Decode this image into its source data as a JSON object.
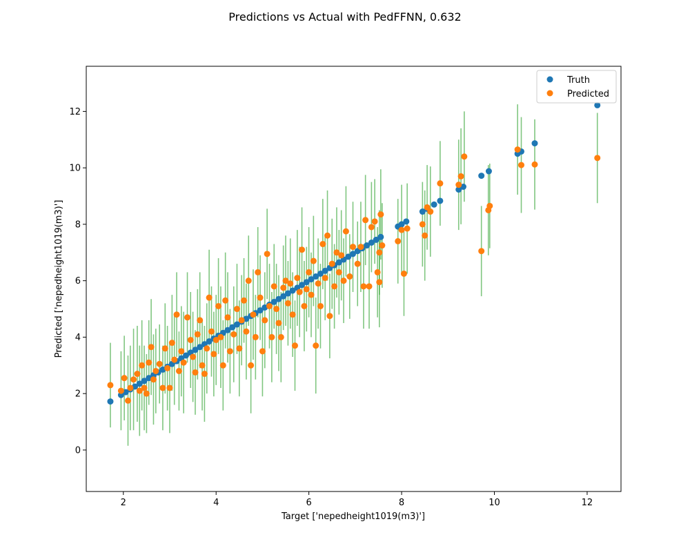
{
  "chart_data": {
    "type": "scatter",
    "title": "Predictions vs Actual with PedFFNN, 0.632",
    "xlabel": "Target ['nepedheight1019(m3)']",
    "ylabel": "Predicted ['nepedheight1019(m3)']",
    "xlim": [
      1.2,
      12.73
    ],
    "ylim": [
      -1.47,
      13.6
    ],
    "xticks": [
      2,
      4,
      6,
      8,
      10,
      12
    ],
    "yticks": [
      0,
      2,
      4,
      6,
      8,
      10,
      12
    ],
    "grid": false,
    "legend_position": "upper right",
    "colors": {
      "truth": "#1f77b4",
      "predicted": "#ff7f0e",
      "errorbar": "#2ca02c"
    },
    "series": [
      {
        "name": "Truth",
        "role": "truth",
        "points": [
          [
            1.72,
            1.72
          ],
          [
            1.95,
            1.95
          ],
          [
            2.05,
            2.05
          ],
          [
            2.15,
            2.15
          ],
          [
            2.25,
            2.25
          ],
          [
            2.35,
            2.35
          ],
          [
            2.45,
            2.45
          ],
          [
            2.55,
            2.55
          ],
          [
            2.65,
            2.65
          ],
          [
            2.75,
            2.75
          ],
          [
            2.85,
            2.85
          ],
          [
            2.95,
            2.95
          ],
          [
            3.05,
            3.05
          ],
          [
            3.15,
            3.15
          ],
          [
            3.25,
            3.25
          ],
          [
            3.35,
            3.35
          ],
          [
            3.45,
            3.45
          ],
          [
            3.55,
            3.55
          ],
          [
            3.65,
            3.65
          ],
          [
            3.75,
            3.75
          ],
          [
            3.85,
            3.85
          ],
          [
            3.95,
            3.95
          ],
          [
            4.05,
            4.05
          ],
          [
            4.15,
            4.15
          ],
          [
            4.25,
            4.25
          ],
          [
            4.35,
            4.35
          ],
          [
            4.45,
            4.45
          ],
          [
            4.55,
            4.55
          ],
          [
            4.65,
            4.65
          ],
          [
            4.75,
            4.75
          ],
          [
            4.85,
            4.85
          ],
          [
            4.95,
            4.95
          ],
          [
            5.05,
            5.05
          ],
          [
            5.15,
            5.15
          ],
          [
            5.25,
            5.25
          ],
          [
            5.35,
            5.35
          ],
          [
            5.45,
            5.45
          ],
          [
            5.55,
            5.55
          ],
          [
            5.65,
            5.65
          ],
          [
            5.75,
            5.75
          ],
          [
            5.85,
            5.85
          ],
          [
            5.95,
            5.95
          ],
          [
            6.05,
            6.05
          ],
          [
            6.15,
            6.15
          ],
          [
            6.25,
            6.25
          ],
          [
            6.35,
            6.35
          ],
          [
            6.45,
            6.45
          ],
          [
            6.55,
            6.55
          ],
          [
            6.65,
            6.65
          ],
          [
            6.75,
            6.75
          ],
          [
            6.85,
            6.85
          ],
          [
            6.95,
            6.95
          ],
          [
            7.05,
            7.05
          ],
          [
            7.15,
            7.15
          ],
          [
            7.25,
            7.25
          ],
          [
            7.35,
            7.35
          ],
          [
            7.45,
            7.45
          ],
          [
            7.55,
            7.55
          ],
          [
            7.92,
            7.92
          ],
          [
            8.0,
            8.0
          ],
          [
            8.1,
            8.1
          ],
          [
            8.45,
            8.45
          ],
          [
            8.55,
            8.55
          ],
          [
            8.7,
            8.7
          ],
          [
            8.83,
            8.83
          ],
          [
            9.23,
            9.23
          ],
          [
            9.33,
            9.33
          ],
          [
            9.72,
            9.72
          ],
          [
            9.88,
            9.88
          ],
          [
            10.5,
            10.5
          ],
          [
            10.58,
            10.58
          ],
          [
            10.87,
            10.87
          ],
          [
            12.22,
            12.22
          ]
        ]
      },
      {
        "name": "Predicted",
        "role": "predicted",
        "points": [
          [
            1.72,
            2.3,
            1.5
          ],
          [
            1.95,
            2.1,
            1.4
          ],
          [
            2.02,
            2.55,
            1.5
          ],
          [
            2.1,
            1.75,
            1.6
          ],
          [
            2.15,
            2.2,
            1.5
          ],
          [
            2.22,
            2.5,
            1.8
          ],
          [
            2.3,
            2.7,
            1.7
          ],
          [
            2.35,
            2.1,
            1.6
          ],
          [
            2.4,
            3.0,
            1.6
          ],
          [
            2.45,
            2.2,
            1.5
          ],
          [
            2.5,
            2.0,
            1.4
          ],
          [
            2.55,
            3.1,
            1.5
          ],
          [
            2.6,
            3.65,
            1.7
          ],
          [
            2.65,
            2.5,
            1.6
          ],
          [
            2.7,
            2.8,
            1.5
          ],
          [
            2.78,
            3.05,
            1.4
          ],
          [
            2.85,
            2.2,
            1.5
          ],
          [
            2.9,
            3.6,
            1.6
          ],
          [
            2.95,
            2.9,
            1.5
          ],
          [
            3.0,
            2.2,
            1.6
          ],
          [
            3.05,
            3.8,
            1.7
          ],
          [
            3.1,
            3.2,
            1.6
          ],
          [
            3.15,
            4.8,
            1.5
          ],
          [
            3.2,
            2.8,
            1.4
          ],
          [
            3.25,
            3.5,
            1.6
          ],
          [
            3.3,
            3.1,
            1.8
          ],
          [
            3.38,
            4.7,
            1.6
          ],
          [
            3.45,
            3.9,
            1.7
          ],
          [
            3.5,
            3.3,
            1.6
          ],
          [
            3.55,
            2.75,
            1.5
          ],
          [
            3.6,
            4.1,
            1.6
          ],
          [
            3.65,
            4.6,
            1.7
          ],
          [
            3.7,
            3.0,
            1.6
          ],
          [
            3.75,
            2.7,
            1.7
          ],
          [
            3.8,
            3.6,
            1.6
          ],
          [
            3.85,
            5.4,
            1.7
          ],
          [
            3.9,
            4.2,
            1.6
          ],
          [
            3.95,
            3.4,
            1.5
          ],
          [
            4.0,
            3.9,
            1.6
          ],
          [
            4.05,
            5.1,
            1.7
          ],
          [
            4.1,
            4.0,
            1.8
          ],
          [
            4.15,
            3.0,
            1.6
          ],
          [
            4.2,
            5.3,
            1.7
          ],
          [
            4.25,
            4.7,
            1.6
          ],
          [
            4.3,
            3.5,
            1.5
          ],
          [
            4.38,
            4.1,
            1.7
          ],
          [
            4.45,
            5.0,
            1.6
          ],
          [
            4.5,
            3.6,
            1.7
          ],
          [
            4.55,
            4.6,
            1.6
          ],
          [
            4.6,
            5.3,
            1.5
          ],
          [
            4.65,
            4.2,
            1.7
          ],
          [
            4.7,
            6.0,
            1.6
          ],
          [
            4.75,
            3.0,
            1.7
          ],
          [
            4.8,
            4.8,
            1.6
          ],
          [
            4.85,
            4.0,
            1.5
          ],
          [
            4.9,
            6.3,
            1.6
          ],
          [
            4.95,
            5.4,
            1.5
          ],
          [
            5.0,
            3.5,
            1.6
          ],
          [
            5.05,
            4.6,
            1.7
          ],
          [
            5.1,
            6.95,
            1.6
          ],
          [
            5.15,
            5.1,
            1.5
          ],
          [
            5.2,
            4.0,
            1.6
          ],
          [
            5.25,
            5.8,
            1.5
          ],
          [
            5.3,
            5.0,
            1.6
          ],
          [
            5.35,
            4.5,
            1.7
          ],
          [
            5.4,
            4.0,
            1.6
          ],
          [
            5.45,
            5.75,
            1.5
          ],
          [
            5.5,
            6.0,
            1.6
          ],
          [
            5.55,
            5.2,
            1.5
          ],
          [
            5.6,
            5.9,
            1.6
          ],
          [
            5.65,
            4.8,
            1.5
          ],
          [
            5.7,
            3.7,
            1.6
          ],
          [
            5.75,
            6.1,
            1.7
          ],
          [
            5.8,
            5.6,
            1.6
          ],
          [
            5.85,
            7.1,
            1.5
          ],
          [
            5.9,
            5.1,
            1.6
          ],
          [
            5.95,
            5.7,
            1.5
          ],
          [
            6.0,
            6.3,
            1.6
          ],
          [
            6.05,
            5.5,
            1.5
          ],
          [
            6.1,
            6.7,
            1.6
          ],
          [
            6.15,
            3.7,
            1.7
          ],
          [
            6.2,
            5.9,
            1.6
          ],
          [
            6.25,
            5.1,
            1.5
          ],
          [
            6.3,
            7.3,
            1.6
          ],
          [
            6.35,
            6.1,
            1.5
          ],
          [
            6.4,
            7.6,
            1.6
          ],
          [
            6.45,
            4.75,
            1.5
          ],
          [
            6.5,
            6.6,
            1.6
          ],
          [
            6.55,
            5.8,
            1.5
          ],
          [
            6.6,
            7.0,
            1.6
          ],
          [
            6.65,
            6.3,
            1.5
          ],
          [
            6.7,
            6.9,
            1.6
          ],
          [
            6.75,
            6.0,
            1.5
          ],
          [
            6.8,
            7.75,
            1.6
          ],
          [
            6.88,
            6.15,
            1.5
          ],
          [
            6.95,
            7.2,
            1.6
          ],
          [
            7.05,
            6.6,
            1.5
          ],
          [
            7.12,
            7.2,
            1.6
          ],
          [
            7.18,
            5.8,
            1.5
          ],
          [
            7.22,
            8.15,
            1.6
          ],
          [
            7.3,
            5.8,
            1.5
          ],
          [
            7.35,
            7.9,
            1.6
          ],
          [
            7.42,
            8.1,
            1.5
          ],
          [
            7.48,
            6.3,
            1.6
          ],
          [
            7.52,
            7.0,
            1.5
          ],
          [
            7.55,
            8.35,
            1.6
          ],
          [
            7.58,
            7.25,
            1.5
          ],
          [
            7.52,
            5.95,
            1.6
          ],
          [
            7.92,
            7.4,
            1.5
          ],
          [
            8.0,
            7.8,
            1.6
          ],
          [
            8.05,
            6.25,
            1.5
          ],
          [
            8.12,
            7.85,
            1.6
          ],
          [
            8.45,
            8.0,
            1.5
          ],
          [
            8.5,
            7.6,
            1.6
          ],
          [
            8.55,
            8.6,
            1.5
          ],
          [
            8.62,
            8.45,
            1.6
          ],
          [
            8.83,
            9.45,
            1.5
          ],
          [
            9.23,
            9.4,
            1.6
          ],
          [
            9.28,
            9.7,
            1.7
          ],
          [
            9.35,
            10.4,
            1.6
          ],
          [
            9.72,
            7.05,
            1.6
          ],
          [
            9.87,
            8.5,
            1.6
          ],
          [
            9.9,
            8.65,
            1.5
          ],
          [
            10.5,
            10.65,
            1.6
          ],
          [
            10.58,
            10.1,
            1.7
          ],
          [
            10.87,
            10.12,
            1.6
          ],
          [
            12.22,
            10.35,
            1.6
          ]
        ]
      }
    ]
  }
}
